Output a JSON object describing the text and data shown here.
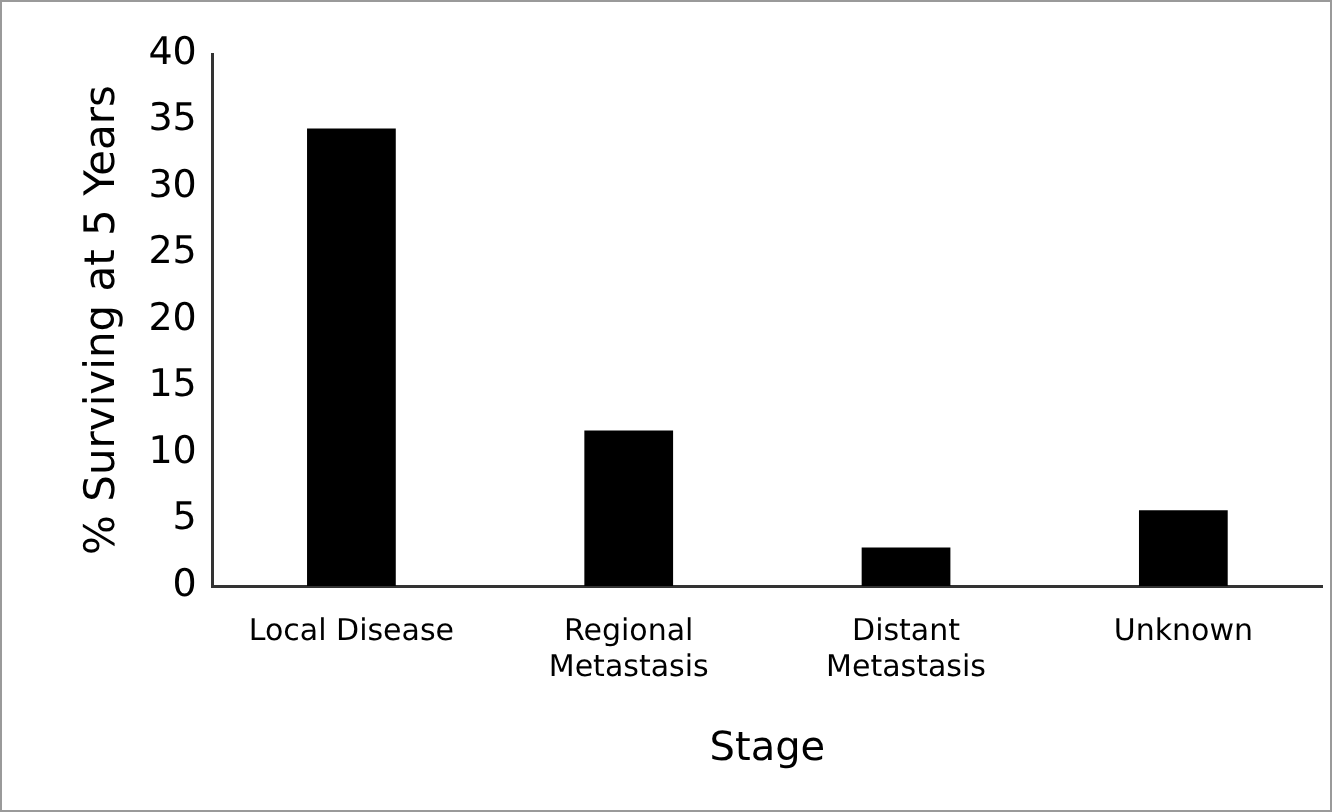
{
  "chart_data": {
    "type": "bar",
    "xlabel": "Stage",
    "ylabel": "% Surviving at 5 Years",
    "categories": [
      "Local Disease",
      "Regional Metastasis",
      "Distant Metastasis",
      "Unknown"
    ],
    "values": [
      34.4,
      11.7,
      2.9,
      5.7
    ],
    "color": "#000000",
    "ylim": [
      0,
      40
    ],
    "yticks": [
      0,
      5,
      10,
      15,
      20,
      25,
      30,
      35,
      40
    ],
    "grid": false,
    "legend": false
  }
}
